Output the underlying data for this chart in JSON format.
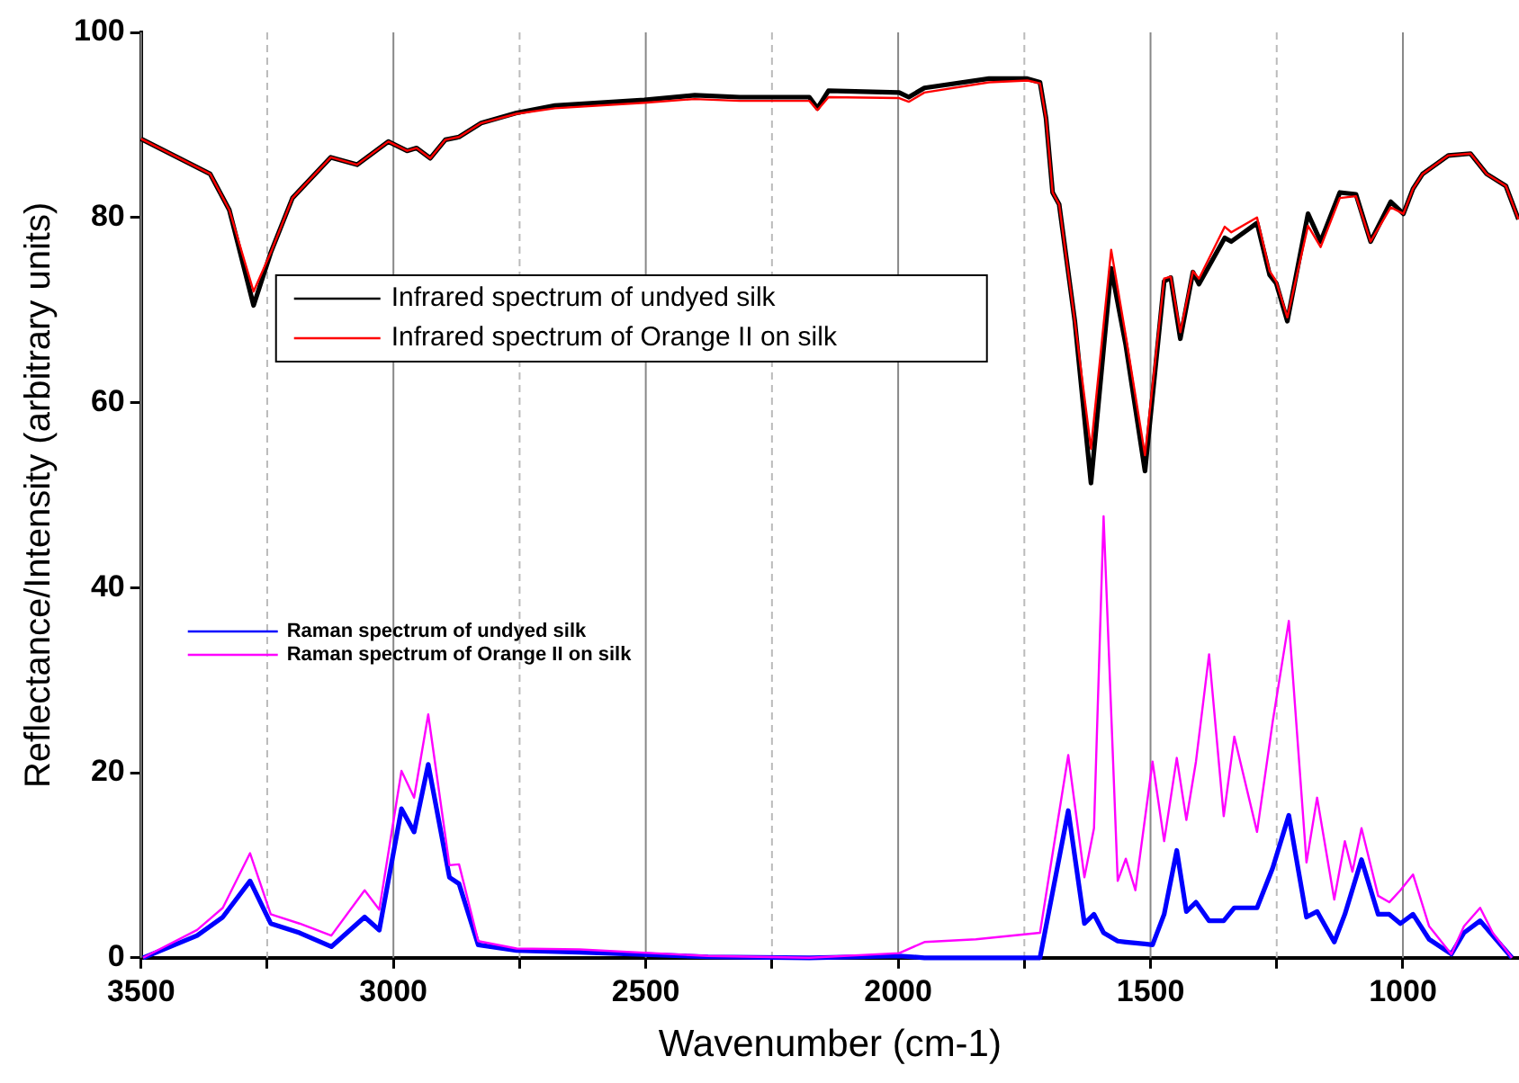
{
  "chart_data": {
    "type": "line",
    "xlabel": "Wavenumber (cm-1)",
    "ylabel": "Reflectance/Intensity (arbitrary units)",
    "xlim": [
      3500,
      770
    ],
    "xticks": [
      3500,
      {
        "value": 3250,
        "label": null
      },
      3000,
      {
        "value": 2750,
        "label": null
      },
      2500,
      {
        "value": 2250,
        "label": null
      },
      2000,
      {
        "value": 1750,
        "label": null
      },
      1500,
      {
        "value": 1250,
        "label": null
      },
      1000
    ],
    "ylim": [
      0,
      100
    ],
    "yticks": [
      0,
      20,
      40,
      60,
      80,
      100
    ],
    "grid": "x",
    "legend": "left",
    "marker": "none",
    "line_style": "solid",
    "series": [
      {
        "name": "Infrared spectrum of undyed silk",
        "color": "#000000",
        "x": [
          3500,
          3363,
          3325,
          3277,
          3243,
          3200,
          3124,
          3072,
          3010,
          2973,
          2954,
          2927,
          2897,
          2870,
          2826,
          2756,
          2680,
          2503,
          2403,
          2314,
          2176,
          2160,
          2138,
          1998,
          1979,
          1948,
          1820,
          1744,
          1719,
          1707,
          1694,
          1681,
          1650,
          1618,
          1578,
          1549,
          1511,
          1473,
          1460,
          1441,
          1416,
          1404,
          1353,
          1340,
          1289,
          1264,
          1251,
          1229,
          1188,
          1163,
          1125,
          1093,
          1064,
          1024,
          999,
          980,
          961,
          910,
          866,
          834,
          796,
          771
        ],
        "values": [
          88.5,
          84.7,
          80.8,
          70.5,
          76.2,
          82.1,
          86.5,
          85.7,
          88.2,
          87.2,
          87.5,
          86.4,
          88.4,
          88.7,
          90.2,
          91.3,
          92.1,
          92.7,
          93.2,
          93.0,
          93.0,
          91.8,
          93.7,
          93.5,
          93.0,
          94.0,
          95.0,
          95.0,
          94.6,
          90.7,
          82.7,
          81.4,
          68.8,
          51.3,
          74.5,
          66.2,
          52.6,
          73.1,
          73.5,
          66.9,
          74.1,
          72.8,
          77.8,
          77.4,
          79.4,
          73.8,
          72.9,
          68.8,
          80.4,
          77.4,
          82.7,
          82.5,
          77.4,
          81.7,
          80.4,
          83.1,
          84.7,
          86.7,
          86.9,
          84.7,
          83.4,
          79.8
        ]
      },
      {
        "name": "Infrared spectrum of Orange II on silk",
        "color": "#ff0000",
        "x": [
          3500,
          3363,
          3325,
          3277,
          3243,
          3200,
          3124,
          3072,
          3010,
          2973,
          2954,
          2927,
          2897,
          2870,
          2826,
          2756,
          2680,
          2503,
          2403,
          2314,
          2176,
          2160,
          2138,
          1998,
          1979,
          1948,
          1820,
          1744,
          1719,
          1707,
          1694,
          1681,
          1650,
          1618,
          1578,
          1549,
          1511,
          1473,
          1460,
          1441,
          1416,
          1404,
          1353,
          1340,
          1289,
          1264,
          1251,
          1229,
          1188,
          1163,
          1125,
          1093,
          1064,
          1024,
          999,
          980,
          961,
          910,
          866,
          834,
          796,
          771
        ],
        "values": [
          88.5,
          84.7,
          80.8,
          72.0,
          76.2,
          82.1,
          86.5,
          85.7,
          88.2,
          87.2,
          87.5,
          86.4,
          88.4,
          88.7,
          90.2,
          91.2,
          91.8,
          92.4,
          92.8,
          92.6,
          92.6,
          91.6,
          93.0,
          92.9,
          92.5,
          93.5,
          94.6,
          94.8,
          94.5,
          90.7,
          82.7,
          81.4,
          68.8,
          55.0,
          76.5,
          67.2,
          54.3,
          73.4,
          73.6,
          67.6,
          74.2,
          73.4,
          79.0,
          78.4,
          80.0,
          74.2,
          73.1,
          69.2,
          79.1,
          76.8,
          82.1,
          82.3,
          77.4,
          81.1,
          80.4,
          83.1,
          84.7,
          86.7,
          86.9,
          84.7,
          83.4,
          79.8
        ]
      },
      {
        "name": "Raman spectrum of undyed silk",
        "color": "#0000ff",
        "x": [
          3496,
          3389,
          3338,
          3284,
          3243,
          3186,
          3123,
          3057,
          3028,
          2984,
          2959,
          2931,
          2889,
          2870,
          2832,
          2756,
          2631,
          2377,
          2176,
          1998,
          1948,
          1846,
          1719,
          1663,
          1631,
          1612,
          1593,
          1565,
          1549,
          1530,
          1496,
          1473,
          1448,
          1429,
          1410,
          1384,
          1355,
          1334,
          1289,
          1258,
          1226,
          1191,
          1170,
          1136,
          1115,
          1082,
          1049,
          1027,
          1005,
          980,
          948,
          904,
          879,
          847,
          822,
          784
        ],
        "values": [
          0,
          2.4,
          4.4,
          8.3,
          3.7,
          2.7,
          1.2,
          4.4,
          3.0,
          16.1,
          13.6,
          20.9,
          8.7,
          8.0,
          1.4,
          0.8,
          0.6,
          0.1,
          0,
          0.2,
          0,
          0,
          0,
          15.9,
          3.7,
          4.7,
          2.7,
          1.8,
          1.7,
          1.6,
          1.4,
          4.7,
          11.6,
          5.0,
          6.0,
          4.0,
          4.0,
          5.4,
          5.4,
          9.7,
          15.4,
          4.4,
          5.0,
          1.7,
          4.7,
          10.6,
          4.7,
          4.7,
          3.7,
          4.7,
          2.0,
          0.4,
          2.7,
          4.0,
          2.4,
          0
        ]
      },
      {
        "name": "Raman spectrum of Orange II on silk",
        "color": "#ff00ff",
        "x": [
          3496,
          3389,
          3338,
          3284,
          3243,
          3186,
          3123,
          3057,
          3028,
          2984,
          2959,
          2931,
          2889,
          2870,
          2832,
          2756,
          2631,
          2377,
          2176,
          1998,
          1948,
          1846,
          1719,
          1663,
          1631,
          1612,
          1593,
          1565,
          1549,
          1530,
          1496,
          1473,
          1448,
          1429,
          1410,
          1384,
          1355,
          1334,
          1289,
          1258,
          1226,
          1191,
          1170,
          1136,
          1115,
          1100,
          1082,
          1049,
          1027,
          1005,
          980,
          948,
          904,
          879,
          847,
          822,
          784
        ],
        "values": [
          0,
          3.0,
          5.4,
          11.3,
          4.7,
          3.7,
          2.4,
          7.3,
          5.2,
          20.2,
          17.3,
          26.3,
          10.0,
          10.1,
          1.8,
          1.0,
          0.9,
          0.2,
          0,
          0.5,
          1.7,
          2.0,
          2.7,
          21.9,
          8.7,
          14.0,
          47.7,
          8.3,
          10.7,
          7.3,
          21.2,
          12.6,
          21.6,
          14.9,
          21.2,
          32.8,
          15.3,
          23.9,
          13.6,
          25.5,
          36.4,
          10.3,
          17.3,
          6.3,
          12.6,
          9.3,
          14.0,
          6.7,
          6.0,
          7.3,
          9.0,
          3.4,
          0.4,
          3.4,
          5.4,
          2.7,
          0
        ]
      }
    ]
  }
}
